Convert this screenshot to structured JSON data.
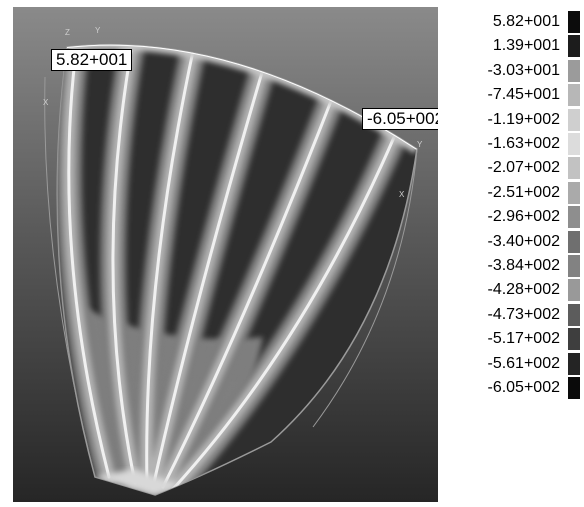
{
  "viewport": {
    "max_tag": "5.82+001",
    "min_tag": "-6.05+002",
    "axis_labels": [
      "Z",
      "Y",
      "X",
      "X",
      "Y"
    ]
  },
  "legend": {
    "items": [
      {
        "label": "5.82+001",
        "color": "#0c0c0c"
      },
      {
        "label": "1.39+001",
        "color": "#1c1c1c"
      },
      {
        "label": "-3.03+001",
        "color": "#9b9b9b"
      },
      {
        "label": "-7.45+001",
        "color": "#b7b7b7"
      },
      {
        "label": "-1.19+002",
        "color": "#cfcfcf"
      },
      {
        "label": "-1.63+002",
        "color": "#dcdcdc"
      },
      {
        "label": "-2.07+002",
        "color": "#c2c2c2"
      },
      {
        "label": "-2.51+002",
        "color": "#aaaaaa"
      },
      {
        "label": "-2.96+002",
        "color": "#8e8e8e"
      },
      {
        "label": "-3.40+002",
        "color": "#6f6f6f"
      },
      {
        "label": "-3.84+002",
        "color": "#828282"
      },
      {
        "label": "-4.28+002",
        "color": "#999999"
      },
      {
        "label": "-4.73+002",
        "color": "#5c5c5c"
      },
      {
        "label": "-5.17+002",
        "color": "#3e3e3e"
      },
      {
        "label": "-5.61+002",
        "color": "#242424"
      },
      {
        "label": "-6.05+002",
        "color": "#0a0a0a"
      }
    ]
  }
}
